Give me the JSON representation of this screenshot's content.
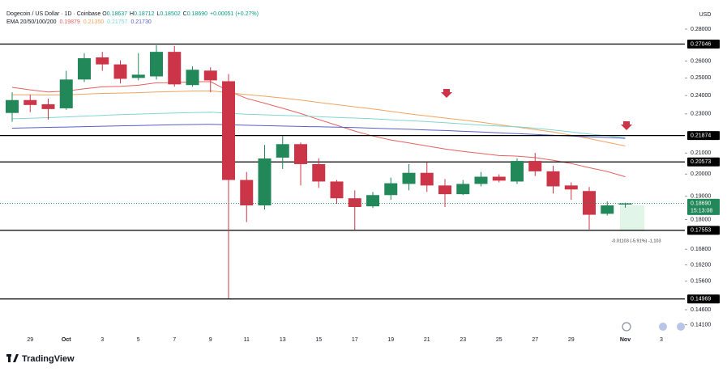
{
  "chart_data": {
    "type": "candlestick",
    "header": {
      "symbol": "Dogecoin / US Dollar · 1D · Coinbase",
      "ohlc": [
        {
          "key": "O",
          "text": "0.18637"
        },
        {
          "key": "H",
          "text": "0.18712"
        },
        {
          "key": "L",
          "text": "0.18502"
        },
        {
          "key": "C",
          "text": "0.18690"
        }
      ],
      "change": "+0.00051 (+0.27%)",
      "indicator": "EMA 20/50/100/200"
    },
    "currency": "USD",
    "categories": [
      null,
      "29",
      null,
      "Oct",
      null,
      "3",
      null,
      "5",
      null,
      "7",
      null,
      "9",
      null,
      "11",
      null,
      "13",
      null,
      "15",
      null,
      "17",
      null,
      "19",
      null,
      "21",
      null,
      "23",
      null,
      "25",
      null,
      "27",
      null,
      "29",
      null,
      null,
      "Nov",
      null,
      "3"
    ],
    "open": [
      0.2305,
      0.2375,
      0.2352,
      0.233,
      0.2491,
      0.2622,
      0.258,
      0.25,
      0.2509,
      0.2656,
      0.2459,
      0.2543,
      0.2481,
      0.1973,
      0.186,
      0.2078,
      0.2144,
      0.2047,
      0.1966,
      0.1891,
      0.1856,
      0.1905,
      0.1955,
      0.2006,
      0.1948,
      0.1909,
      0.1955,
      0.1988,
      0.1966,
      0.2062,
      0.2013,
      0.1948,
      0.1923,
      0.1824,
      0.18637,
      null,
      null
    ],
    "high": [
      0.2418,
      0.2405,
      0.2383,
      0.2542,
      0.2648,
      0.2656,
      0.2604,
      0.2648,
      0.2697,
      0.2692,
      0.2568,
      0.2563,
      0.2523,
      0.201,
      0.214,
      0.2184,
      0.2152,
      0.2074,
      0.1973,
      0.1926,
      0.1919,
      0.1984,
      0.2047,
      0.2055,
      0.1977,
      0.1973,
      0.201,
      0.1999,
      0.2074,
      0.2101,
      0.2039,
      0.1962,
      0.1941,
      0.1877,
      0.18712,
      null,
      null
    ],
    "low": [
      0.2258,
      0.2309,
      0.227,
      0.2322,
      0.2477,
      0.2542,
      0.2468,
      0.2486,
      0.2491,
      0.245,
      0.245,
      0.2418,
      0.1499,
      0.1789,
      0.1842,
      0.2024,
      0.1948,
      0.1937,
      0.1867,
      0.1756,
      0.1849,
      0.1884,
      0.1926,
      0.1919,
      0.1853,
      0.1905,
      0.1944,
      0.1962,
      0.1955,
      0.1991,
      0.1912,
      0.1884,
      0.1759,
      0.1817,
      0.18502,
      null,
      null
    ],
    "close": [
      0.2375,
      0.2348,
      0.2326,
      0.2491,
      0.2617,
      0.258,
      0.2495,
      0.2519,
      0.2656,
      0.2463,
      0.2548,
      0.2486,
      0.1973,
      0.186,
      0.2074,
      0.2144,
      0.2047,
      0.1966,
      0.1891,
      0.1853,
      0.1905,
      0.1958,
      0.2006,
      0.1948,
      0.1909,
      0.1955,
      0.1988,
      0.197,
      0.2062,
      0.2013,
      0.1944,
      0.193,
      0.182,
      0.186,
      0.1869,
      null,
      null
    ],
    "up_color": "#22885a",
    "down_color": "#cc3447",
    "ema": [
      {
        "color": "#e5615f",
        "last_label": "0.19879",
        "values": [
          0.2446,
          0.2432,
          0.242,
          0.2425,
          0.2438,
          0.2449,
          0.2452,
          0.2458,
          0.2472,
          0.2473,
          0.2478,
          0.2479,
          0.2425,
          0.2384,
          0.2358,
          0.233,
          0.2302,
          0.227,
          0.224,
          0.221,
          0.2185,
          0.2165,
          0.215,
          0.2135,
          0.212,
          0.2108,
          0.2098,
          0.2088,
          0.2085,
          0.2078,
          0.2065,
          0.205,
          0.203,
          0.2012,
          0.19879,
          null,
          null
        ]
      },
      {
        "color": "#f0a35e",
        "last_label": "0.21350",
        "values": [
          0.2404,
          0.2404,
          0.2403,
          0.2404,
          0.2408,
          0.2412,
          0.2414,
          0.2416,
          0.242,
          0.2422,
          0.2425,
          0.2426,
          0.2416,
          0.2405,
          0.2396,
          0.2386,
          0.2375,
          0.2362,
          0.235,
          0.2338,
          0.2326,
          0.2313,
          0.23,
          0.2289,
          0.2278,
          0.2267,
          0.2256,
          0.2243,
          0.2231,
          0.2218,
          0.2205,
          0.2189,
          0.2172,
          0.2153,
          0.2135,
          null,
          null
        ]
      },
      {
        "color": "#7fd6d0",
        "last_label": "0.21757",
        "values": [
          0.2274,
          0.2277,
          0.228,
          0.2284,
          0.2288,
          0.2292,
          0.2296,
          0.2299,
          0.2302,
          0.2305,
          0.2307,
          0.2309,
          0.2303,
          0.2298,
          0.2295,
          0.2292,
          0.2289,
          0.2285,
          0.2281,
          0.2278,
          0.2274,
          0.2269,
          0.2264,
          0.2259,
          0.2253,
          0.2247,
          0.2241,
          0.2236,
          0.2232,
          0.2225,
          0.2216,
          0.2206,
          0.2195,
          0.2186,
          0.21757,
          null,
          null
        ]
      },
      {
        "color": "#5a5fc8",
        "last_label": "0.21730",
        "values": [
          0.2225,
          0.2227,
          0.2229,
          0.2231,
          0.2233,
          0.2235,
          0.2237,
          0.2239,
          0.2241,
          0.2243,
          0.2244,
          0.2245,
          0.2243,
          0.224,
          0.2238,
          0.2236,
          0.2234,
          0.2232,
          0.223,
          0.2228,
          0.2225,
          0.2222,
          0.2219,
          0.2216,
          0.2213,
          0.2209,
          0.2205,
          0.2201,
          0.2197,
          0.2193,
          0.2189,
          0.2185,
          0.2181,
          0.2177,
          0.2173,
          null,
          null
        ]
      }
    ],
    "ylim": [
      0.1388,
      0.294
    ],
    "log_scale": true,
    "grid": false,
    "yticks": [
      {
        "value": 0.28,
        "label": "0.28000"
      },
      {
        "value": 0.26,
        "label": "0.26000"
      },
      {
        "value": 0.25,
        "label": "0.25000"
      },
      {
        "value": 0.24,
        "label": "0.24000"
      },
      {
        "value": 0.23,
        "label": "0.23000"
      },
      {
        "value": 0.21,
        "label": "0.21000"
      },
      {
        "value": 0.2,
        "label": "0.20000"
      },
      {
        "value": 0.19,
        "label": "0.19000"
      },
      {
        "value": 0.18,
        "label": "0.18000"
      },
      {
        "value": 0.168,
        "label": "0.16800"
      },
      {
        "value": 0.162,
        "label": "0.16200"
      },
      {
        "value": 0.156,
        "label": "0.15600"
      },
      {
        "value": 0.146,
        "label": "0.14600"
      },
      {
        "value": 0.141,
        "label": "0.14100"
      }
    ],
    "levels": [
      0.27046,
      0.21874,
      0.20573,
      0.17553,
      0.14969
    ],
    "level_color": "#000000",
    "price_line": {
      "value": 0.1869,
      "label": "0.18690",
      "countdown": "15:13:08",
      "color": "#22885a"
    },
    "measure_label": "-0.01103 (-5.91%) -1,103"
  },
  "branding": "TradingView"
}
